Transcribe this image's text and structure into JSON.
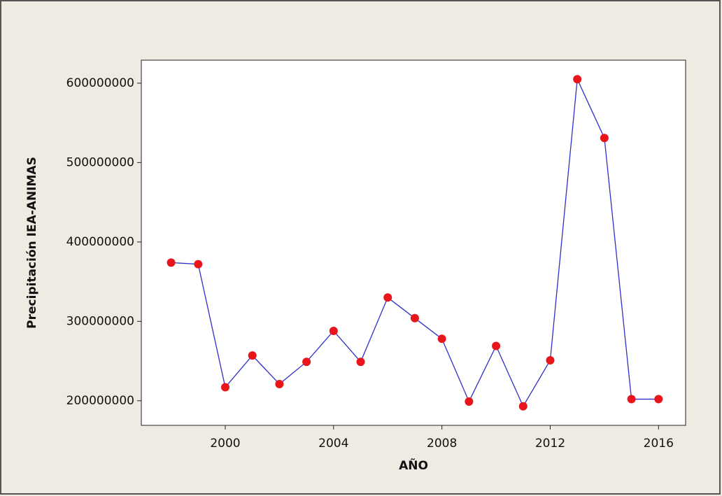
{
  "chart_data": {
    "type": "line",
    "x_label": "AÑO",
    "y_label": "Precipitación IEA-ANIMAS",
    "x": [
      1998,
      1999,
      2000,
      2001,
      2002,
      2003,
      2004,
      2005,
      2006,
      2007,
      2008,
      2009,
      2010,
      2011,
      2012,
      2013,
      2014,
      2015,
      2016
    ],
    "series": [
      {
        "color": "#2f2fc8",
        "marker_color": "#e8161b",
        "values": [
          374000000,
          372000000,
          217000000,
          257000000,
          221000000,
          249000000,
          288000000,
          249000000,
          330000000,
          304000000,
          278000000,
          199000000,
          269000000,
          193000000,
          251000000,
          605000000,
          531000000,
          202000000,
          202000000
        ]
      }
    ],
    "xlim": [
      1996.9,
      2017.0
    ],
    "ylim": [
      169000000,
      629000000
    ],
    "xticks": [
      2000,
      2004,
      2008,
      2012,
      2016
    ],
    "yticks": [
      200000000,
      300000000,
      400000000,
      500000000,
      600000000
    ]
  }
}
